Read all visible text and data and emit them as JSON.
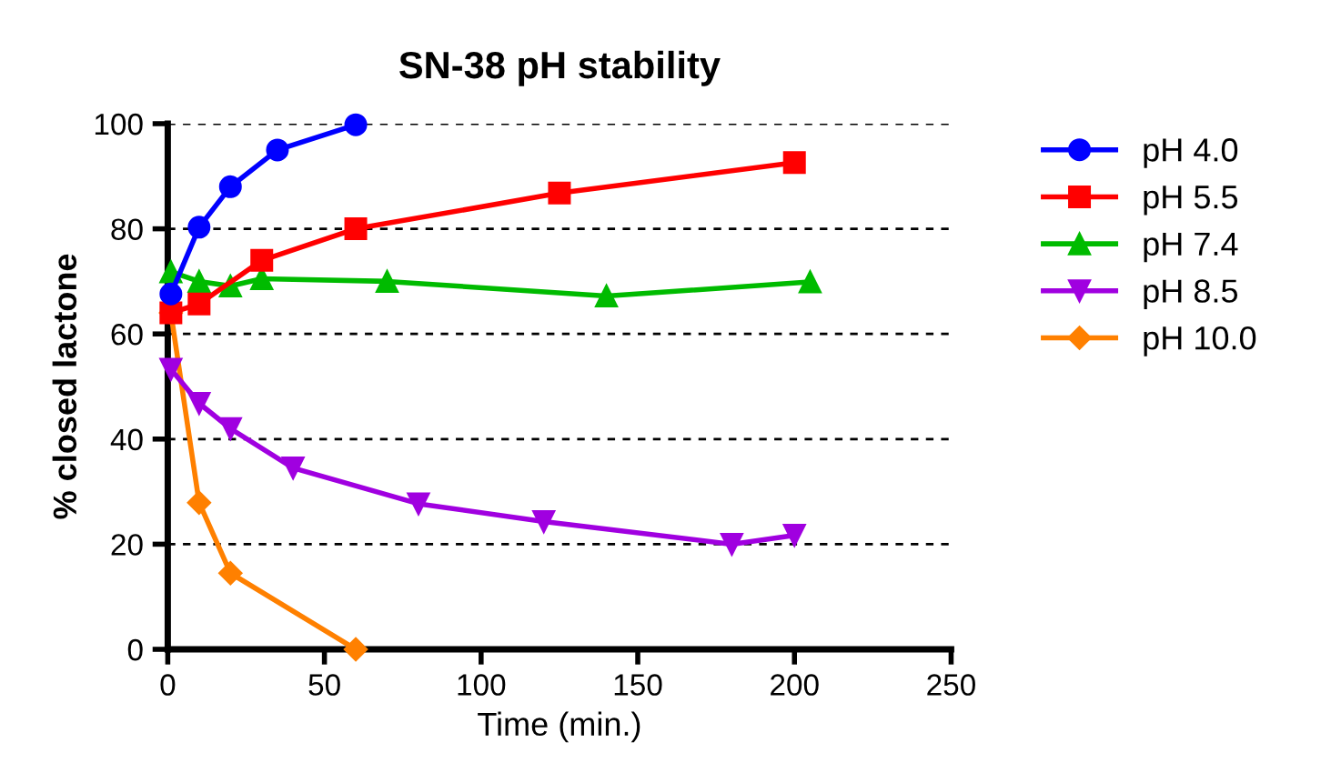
{
  "chart_data": {
    "type": "line",
    "title": "SN-38 pH stability",
    "xlabel": "Time (min.)",
    "ylabel": "% closed lactone",
    "xlim": [
      0,
      250
    ],
    "xticks": [
      0,
      50,
      100,
      150,
      200,
      250
    ],
    "ylim": [
      0,
      100
    ],
    "yticks": [
      0,
      20,
      40,
      60,
      80,
      100
    ],
    "grid": "y",
    "legend": "right",
    "line_style": "solid",
    "series": [
      {
        "name": "pH 4.0",
        "color": "#0000ff",
        "marker": "circle",
        "x": [
          1,
          10,
          20,
          35,
          60
        ],
        "values": [
          67.6,
          80.3,
          88,
          95,
          99.8
        ]
      },
      {
        "name": "pH 5.5",
        "color": "#ff0000",
        "marker": "square",
        "x": [
          1,
          10,
          30,
          60,
          125,
          200
        ],
        "values": [
          64,
          65.7,
          74,
          80,
          86.8,
          92.6
        ]
      },
      {
        "name": "pH 7.4",
        "color": "#00bb00",
        "marker": "triangle",
        "x": [
          1,
          10,
          20,
          30,
          70,
          140,
          205
        ],
        "values": [
          71.8,
          70,
          69.1,
          70.5,
          70,
          67.2,
          69.9
        ]
      },
      {
        "name": "pH 8.5",
        "color": "#a000e0",
        "marker": "triangle_down",
        "x": [
          1,
          10,
          20,
          40,
          80,
          120,
          180,
          200
        ],
        "values": [
          53.3,
          46.8,
          42,
          34.5,
          27.7,
          24.3,
          20,
          21.7
        ]
      },
      {
        "name": "pH 10.0",
        "color": "#ff8000",
        "marker": "diamond",
        "x": [
          1,
          10,
          20,
          60
        ],
        "values": [
          64,
          27.9,
          14.5,
          0
        ]
      }
    ]
  }
}
